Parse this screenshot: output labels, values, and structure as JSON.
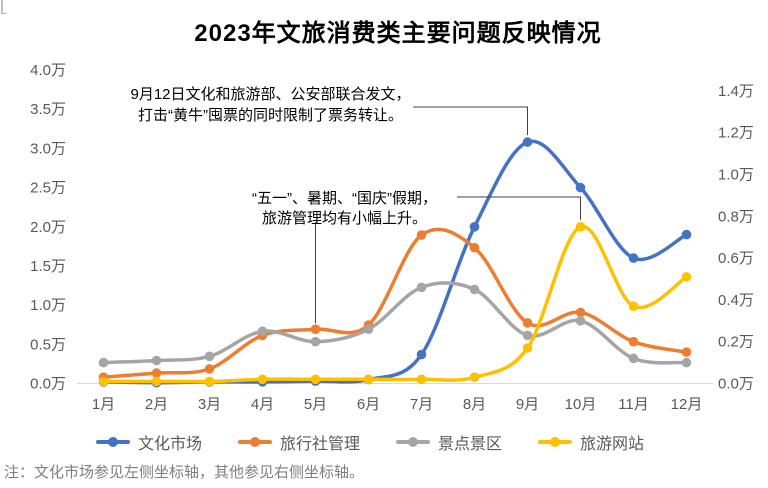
{
  "title": "2023年文旅消费类主要问题反映情况",
  "footnote": "注：文化市场参见左侧坐标轴，其他参见右侧坐标轴。",
  "annotations": [
    {
      "line1": "9月12日文化和旅游部、公安部联合发文，",
      "line2": "打击“黄牛”囤票的同时限制了票务转让。",
      "targets": [
        {
          "series": 0,
          "month_index": 8
        }
      ]
    },
    {
      "line1": "“五一”、暑期、“国庆”假期，",
      "line2": "旅游管理均有小幅上升。",
      "targets": [
        {
          "series": 1,
          "month_index": 4
        },
        {
          "series": 3,
          "month_index": 9
        }
      ]
    }
  ],
  "chart_data": {
    "type": "line",
    "title": "2023年文旅消费类主要问题反映情况",
    "categories": [
      "1月",
      "2月",
      "3月",
      "4月",
      "5月",
      "6月",
      "7月",
      "8月",
      "9月",
      "10月",
      "11月",
      "12月"
    ],
    "unit": "万",
    "smooth": true,
    "grid": false,
    "legend_position": "bottom",
    "series": [
      {
        "name": "文化市场",
        "color": "#4472C4",
        "axis": "left",
        "values": [
          0.02,
          0.01,
          0.02,
          0.02,
          0.03,
          0.05,
          0.37,
          2.0,
          3.08,
          2.5,
          1.6,
          1.9
        ]
      },
      {
        "name": "旅行社管理",
        "color": "#ED7D31",
        "axis": "right",
        "values": [
          0.03,
          0.05,
          0.07,
          0.23,
          0.26,
          0.28,
          0.71,
          0.65,
          0.29,
          0.34,
          0.2,
          0.15
        ]
      },
      {
        "name": "景点景区",
        "color": "#A5A5A5",
        "axis": "right",
        "values": [
          0.1,
          0.11,
          0.13,
          0.25,
          0.2,
          0.26,
          0.46,
          0.45,
          0.23,
          0.3,
          0.12,
          0.1
        ]
      },
      {
        "name": "旅游网站",
        "color": "#FFC000",
        "axis": "right",
        "values": [
          0.01,
          0.01,
          0.01,
          0.02,
          0.02,
          0.02,
          0.02,
          0.03,
          0.17,
          0.75,
          0.37,
          0.51
        ]
      }
    ],
    "left_axis": {
      "min": 0,
      "max": 4.0,
      "tick_step": 0.5,
      "tick_labels": [
        "0.0万",
        "0.5万",
        "1.0万",
        "1.5万",
        "2.0万",
        "2.5万",
        "3.0万",
        "3.5万",
        "4.0万"
      ]
    },
    "right_axis": {
      "min": 0,
      "max": 1.5,
      "tick_step": 0.2,
      "tick_labels": [
        "0.0万",
        "0.2万",
        "0.4万",
        "0.6万",
        "0.8万",
        "1.0万",
        "1.2万",
        "1.4万"
      ]
    }
  },
  "colors": {
    "axis_text": "#595959",
    "axis_line": "#D9D9D9",
    "annotation_text": "#000000",
    "leader_line": "#404040",
    "footnote_text": "#7F7F7F"
  }
}
